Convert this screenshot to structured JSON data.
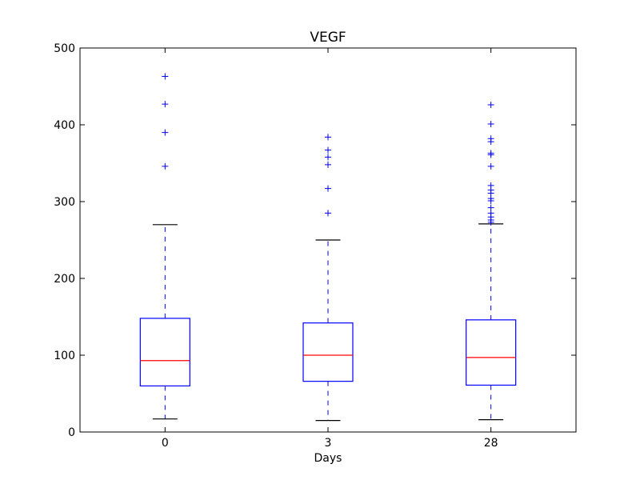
{
  "chart_data": {
    "type": "boxplot",
    "title": "VEGF",
    "xlabel": "Days",
    "ylabel": "",
    "ylim": [
      0,
      500
    ],
    "yticks": [
      0,
      100,
      200,
      300,
      400,
      500
    ],
    "categories": [
      "0",
      "3",
      "28"
    ],
    "grid": false,
    "boxes": [
      {
        "category": "0",
        "whisker_low": 17,
        "q1": 60,
        "median": 93,
        "q3": 148,
        "whisker_high": 270,
        "outliers": [
          346,
          390,
          427,
          463
        ]
      },
      {
        "category": "3",
        "whisker_low": 15,
        "q1": 66,
        "median": 100,
        "q3": 142,
        "whisker_high": 250,
        "outliers": [
          285,
          317,
          348,
          358,
          367,
          384
        ]
      },
      {
        "category": "28",
        "whisker_low": 16,
        "q1": 61,
        "median": 97,
        "q3": 146,
        "whisker_high": 271,
        "outliers": [
          273,
          276,
          280,
          285,
          292,
          301,
          304,
          311,
          315,
          321,
          346,
          361,
          363,
          378,
          382,
          401,
          426
        ]
      }
    ],
    "colors": {
      "box": "#0000ff",
      "median": "#ff0000",
      "cap": "#000000",
      "outlier": "#0000ff",
      "whisker": "#0000ff"
    }
  }
}
